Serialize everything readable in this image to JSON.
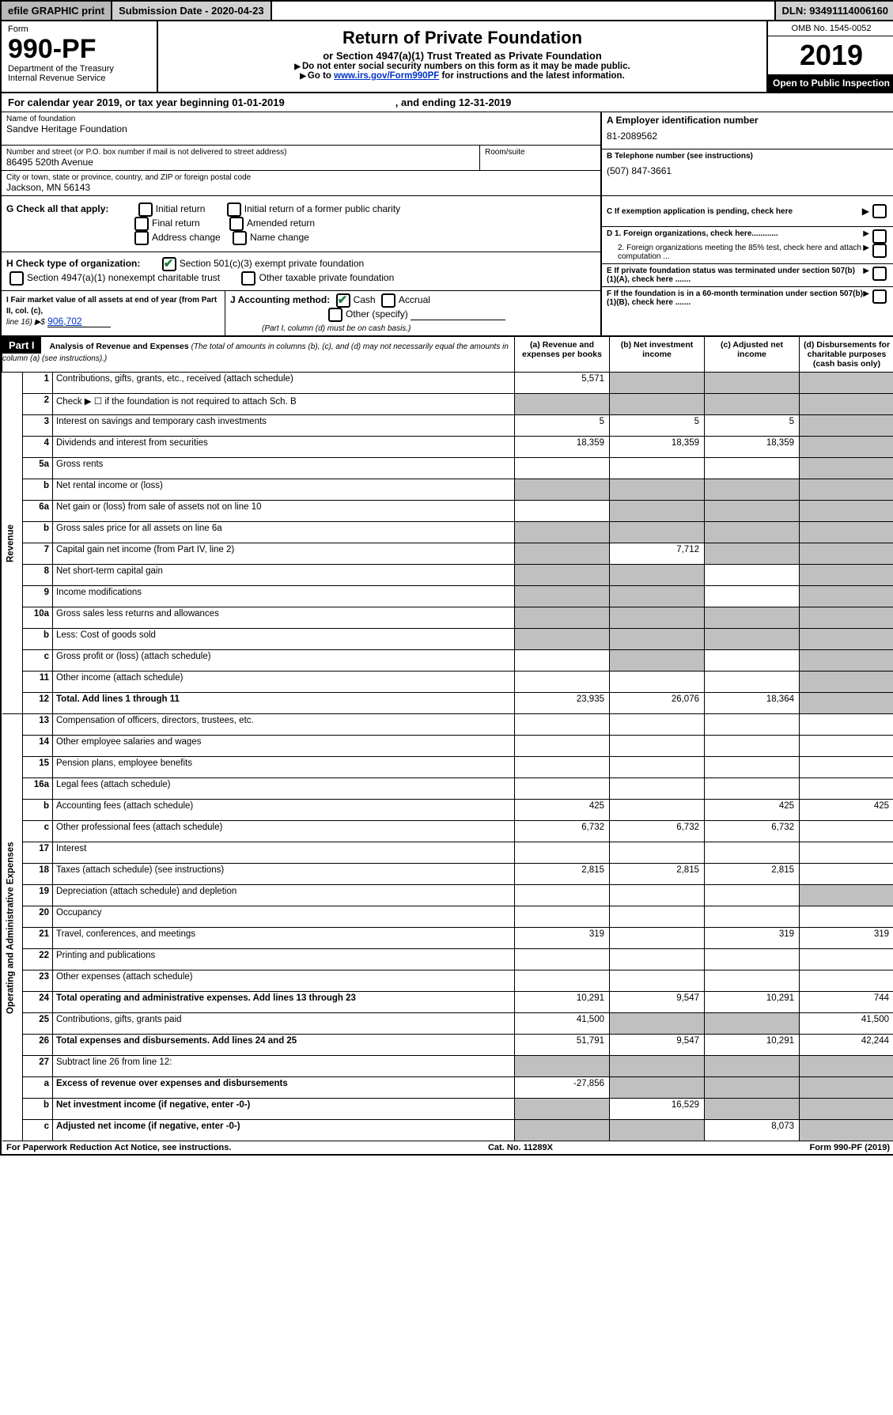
{
  "topbar": {
    "efile": "efile GRAPHIC print",
    "subdate_label": "Submission Date - 2020-04-23",
    "dln": "DLN: 93491114006160"
  },
  "header": {
    "form_label": "Form",
    "form_no": "990-PF",
    "dept": "Department of the Treasury",
    "irs": "Internal Revenue Service",
    "title": "Return of Private Foundation",
    "subtitle": "or Section 4947(a)(1) Trust Treated as Private Foundation",
    "note1": "Do not enter social security numbers on this form as it may be made public.",
    "note2_pre": "Go to ",
    "note2_link": "www.irs.gov/Form990PF",
    "note2_post": " for instructions and the latest information.",
    "omb": "OMB No. 1545-0052",
    "year": "2019",
    "inspect": "Open to Public Inspection"
  },
  "calrow": {
    "text": "For calendar year 2019, or tax year beginning 01-01-2019",
    "ending": ", and ending 12-31-2019"
  },
  "foundation": {
    "name_lbl": "Name of foundation",
    "name": "Sandve Heritage Foundation",
    "addr_lbl": "Number and street (or P.O. box number if mail is not delivered to street address)",
    "addr": "86495 520th Avenue",
    "room_lbl": "Room/suite",
    "city_lbl": "City or town, state or province, country, and ZIP or foreign postal code",
    "city": "Jackson, MN  56143"
  },
  "right": {
    "A_lbl": "A Employer identification number",
    "A_val": "81-2089562",
    "B_lbl": "B Telephone number (see instructions)",
    "B_val": "(507) 847-3661",
    "C_lbl": "C If exemption application is pending, check here",
    "D1": "D 1. Foreign organizations, check here............",
    "D2": "2. Foreign organizations meeting the 85% test, check here and attach computation ...",
    "E": "E  If private foundation status was terminated under section 507(b)(1)(A), check here .......",
    "F": "F  If the foundation is in a 60-month termination under section 507(b)(1)(B), check here .......",
    "arrow": "▶"
  },
  "G": {
    "label": "G Check all that apply:",
    "opts": [
      "Initial return",
      "Initial return of a former public charity",
      "Final return",
      "Amended return",
      "Address change",
      "Name change"
    ]
  },
  "H": {
    "label": "H Check type of organization:",
    "opt1": "Section 501(c)(3) exempt private foundation",
    "opt2": "Section 4947(a)(1) nonexempt charitable trust",
    "opt3": "Other taxable private foundation"
  },
  "I": {
    "label": "I Fair market value of all assets at end of year (from Part II, col. (c),",
    "line16": "line 16) ▶$",
    "val": "906,702"
  },
  "J": {
    "label": "J Accounting method:",
    "cash": "Cash",
    "accrual": "Accrual",
    "other": "Other (specify)",
    "note": "(Part I, column (d) must be on cash basis.)"
  },
  "partI": {
    "label": "Part I",
    "title": "Analysis of Revenue and Expenses",
    "title_note": "(The total of amounts in columns (b), (c), and (d) may not necessarily equal the amounts in column (a) (see instructions).)",
    "col_a": "(a)    Revenue and expenses per books",
    "col_b": "(b)   Net investment income",
    "col_c": "(c)   Adjusted net income",
    "col_d": "(d)   Disbursements for charitable purposes (cash basis only)"
  },
  "vlabels": {
    "rev": "Revenue",
    "op": "Operating and Administrative Expenses"
  },
  "rows": [
    {
      "n": "1",
      "desc": "Contributions, gifts, grants, etc., received (attach schedule)",
      "a": "5,571",
      "b": "",
      "c": "",
      "d": "",
      "shade_b": true,
      "shade_c": true,
      "shade_d": true
    },
    {
      "n": "2",
      "desc": "Check ▶ ☐ if the foundation is not required to attach Sch. B",
      "a": "",
      "b": "",
      "c": "",
      "d": "",
      "shade_a": true,
      "shade_b": true,
      "shade_c": true,
      "shade_d": true,
      "raw": true
    },
    {
      "n": "3",
      "desc": "Interest on savings and temporary cash investments",
      "a": "5",
      "b": "5",
      "c": "5",
      "d": "",
      "shade_d": true
    },
    {
      "n": "4",
      "desc": "Dividends and interest from securities",
      "a": "18,359",
      "b": "18,359",
      "c": "18,359",
      "d": "",
      "shade_d": true
    },
    {
      "n": "5a",
      "desc": "Gross rents",
      "a": "",
      "b": "",
      "c": "",
      "d": "",
      "shade_d": true
    },
    {
      "n": "b",
      "desc": "Net rental income or (loss)",
      "a": "",
      "b": "",
      "c": "",
      "d": "",
      "shade_a": true,
      "shade_b": true,
      "shade_c": true,
      "shade_d": true
    },
    {
      "n": "6a",
      "desc": "Net gain or (loss) from sale of assets not on line 10",
      "a": "",
      "b": "",
      "c": "",
      "d": "",
      "shade_b": true,
      "shade_c": true,
      "shade_d": true
    },
    {
      "n": "b",
      "desc": "Gross sales price for all assets on line 6a",
      "a": "",
      "b": "",
      "c": "",
      "d": "",
      "shade_a": true,
      "shade_b": true,
      "shade_c": true,
      "shade_d": true
    },
    {
      "n": "7",
      "desc": "Capital gain net income (from Part IV, line 2)",
      "a": "",
      "b": "7,712",
      "c": "",
      "d": "",
      "shade_a": true,
      "shade_c": true,
      "shade_d": true
    },
    {
      "n": "8",
      "desc": "Net short-term capital gain",
      "a": "",
      "b": "",
      "c": "",
      "d": "",
      "shade_a": true,
      "shade_b": true,
      "shade_d": true
    },
    {
      "n": "9",
      "desc": "Income modifications",
      "a": "",
      "b": "",
      "c": "",
      "d": "",
      "shade_a": true,
      "shade_b": true,
      "shade_d": true
    },
    {
      "n": "10a",
      "desc": "Gross sales less returns and allowances",
      "a": "",
      "b": "",
      "c": "",
      "d": "",
      "shade_a": true,
      "shade_b": true,
      "shade_c": true,
      "shade_d": true
    },
    {
      "n": "b",
      "desc": "Less: Cost of goods sold",
      "a": "",
      "b": "",
      "c": "",
      "d": "",
      "shade_a": true,
      "shade_b": true,
      "shade_c": true,
      "shade_d": true
    },
    {
      "n": "c",
      "desc": "Gross profit or (loss) (attach schedule)",
      "a": "",
      "b": "",
      "c": "",
      "d": "",
      "shade_b": true,
      "shade_d": true
    },
    {
      "n": "11",
      "desc": "Other income (attach schedule)",
      "a": "",
      "b": "",
      "c": "",
      "d": "",
      "shade_d": true
    },
    {
      "n": "12",
      "desc": "Total. Add lines 1 through 11",
      "a": "23,935",
      "b": "26,076",
      "c": "18,364",
      "d": "",
      "bold": true,
      "shade_d": true
    },
    {
      "n": "13",
      "desc": "Compensation of officers, directors, trustees, etc.",
      "a": "",
      "b": "",
      "c": "",
      "d": ""
    },
    {
      "n": "14",
      "desc": "Other employee salaries and wages",
      "a": "",
      "b": "",
      "c": "",
      "d": ""
    },
    {
      "n": "15",
      "desc": "Pension plans, employee benefits",
      "a": "",
      "b": "",
      "c": "",
      "d": ""
    },
    {
      "n": "16a",
      "desc": "Legal fees (attach schedule)",
      "a": "",
      "b": "",
      "c": "",
      "d": ""
    },
    {
      "n": "b",
      "desc": "Accounting fees (attach schedule)",
      "a": "425",
      "b": "",
      "c": "425",
      "d": "425"
    },
    {
      "n": "c",
      "desc": "Other professional fees (attach schedule)",
      "a": "6,732",
      "b": "6,732",
      "c": "6,732",
      "d": ""
    },
    {
      "n": "17",
      "desc": "Interest",
      "a": "",
      "b": "",
      "c": "",
      "d": ""
    },
    {
      "n": "18",
      "desc": "Taxes (attach schedule) (see instructions)",
      "a": "2,815",
      "b": "2,815",
      "c": "2,815",
      "d": ""
    },
    {
      "n": "19",
      "desc": "Depreciation (attach schedule) and depletion",
      "a": "",
      "b": "",
      "c": "",
      "d": "",
      "shade_d": true
    },
    {
      "n": "20",
      "desc": "Occupancy",
      "a": "",
      "b": "",
      "c": "",
      "d": ""
    },
    {
      "n": "21",
      "desc": "Travel, conferences, and meetings",
      "a": "319",
      "b": "",
      "c": "319",
      "d": "319"
    },
    {
      "n": "22",
      "desc": "Printing and publications",
      "a": "",
      "b": "",
      "c": "",
      "d": ""
    },
    {
      "n": "23",
      "desc": "Other expenses (attach schedule)",
      "a": "",
      "b": "",
      "c": "",
      "d": ""
    },
    {
      "n": "24",
      "desc": "Total operating and administrative expenses. Add lines 13 through 23",
      "a": "10,291",
      "b": "9,547",
      "c": "10,291",
      "d": "744",
      "bold": true
    },
    {
      "n": "25",
      "desc": "Contributions, gifts, grants paid",
      "a": "41,500",
      "b": "",
      "c": "",
      "d": "41,500",
      "shade_b": true,
      "shade_c": true
    },
    {
      "n": "26",
      "desc": "Total expenses and disbursements. Add lines 24 and 25",
      "a": "51,791",
      "b": "9,547",
      "c": "10,291",
      "d": "42,244",
      "bold": true
    },
    {
      "n": "27",
      "desc": "Subtract line 26 from line 12:",
      "a": "",
      "b": "",
      "c": "",
      "d": "",
      "shade_a": true,
      "shade_b": true,
      "shade_c": true,
      "shade_d": true
    },
    {
      "n": "a",
      "desc": "Excess of revenue over expenses and disbursements",
      "a": "-27,856",
      "b": "",
      "c": "",
      "d": "",
      "bold": true,
      "shade_b": true,
      "shade_c": true,
      "shade_d": true
    },
    {
      "n": "b",
      "desc": "Net investment income (if negative, enter -0-)",
      "a": "",
      "b": "16,529",
      "c": "",
      "d": "",
      "bold": true,
      "shade_a": true,
      "shade_c": true,
      "shade_d": true
    },
    {
      "n": "c",
      "desc": "Adjusted net income (if negative, enter -0-)",
      "a": "",
      "b": "",
      "c": "8,073",
      "d": "",
      "bold": true,
      "shade_a": true,
      "shade_b": true,
      "shade_d": true
    }
  ],
  "footer": {
    "left": "For Paperwork Reduction Act Notice, see instructions.",
    "mid": "Cat. No. 11289X",
    "right": "Form 990-PF (2019)"
  },
  "colors": {
    "shade": "#c0c0c0",
    "headerbar": "#b8b8b8",
    "link": "#0033cc",
    "check": "#1a7a3a"
  }
}
